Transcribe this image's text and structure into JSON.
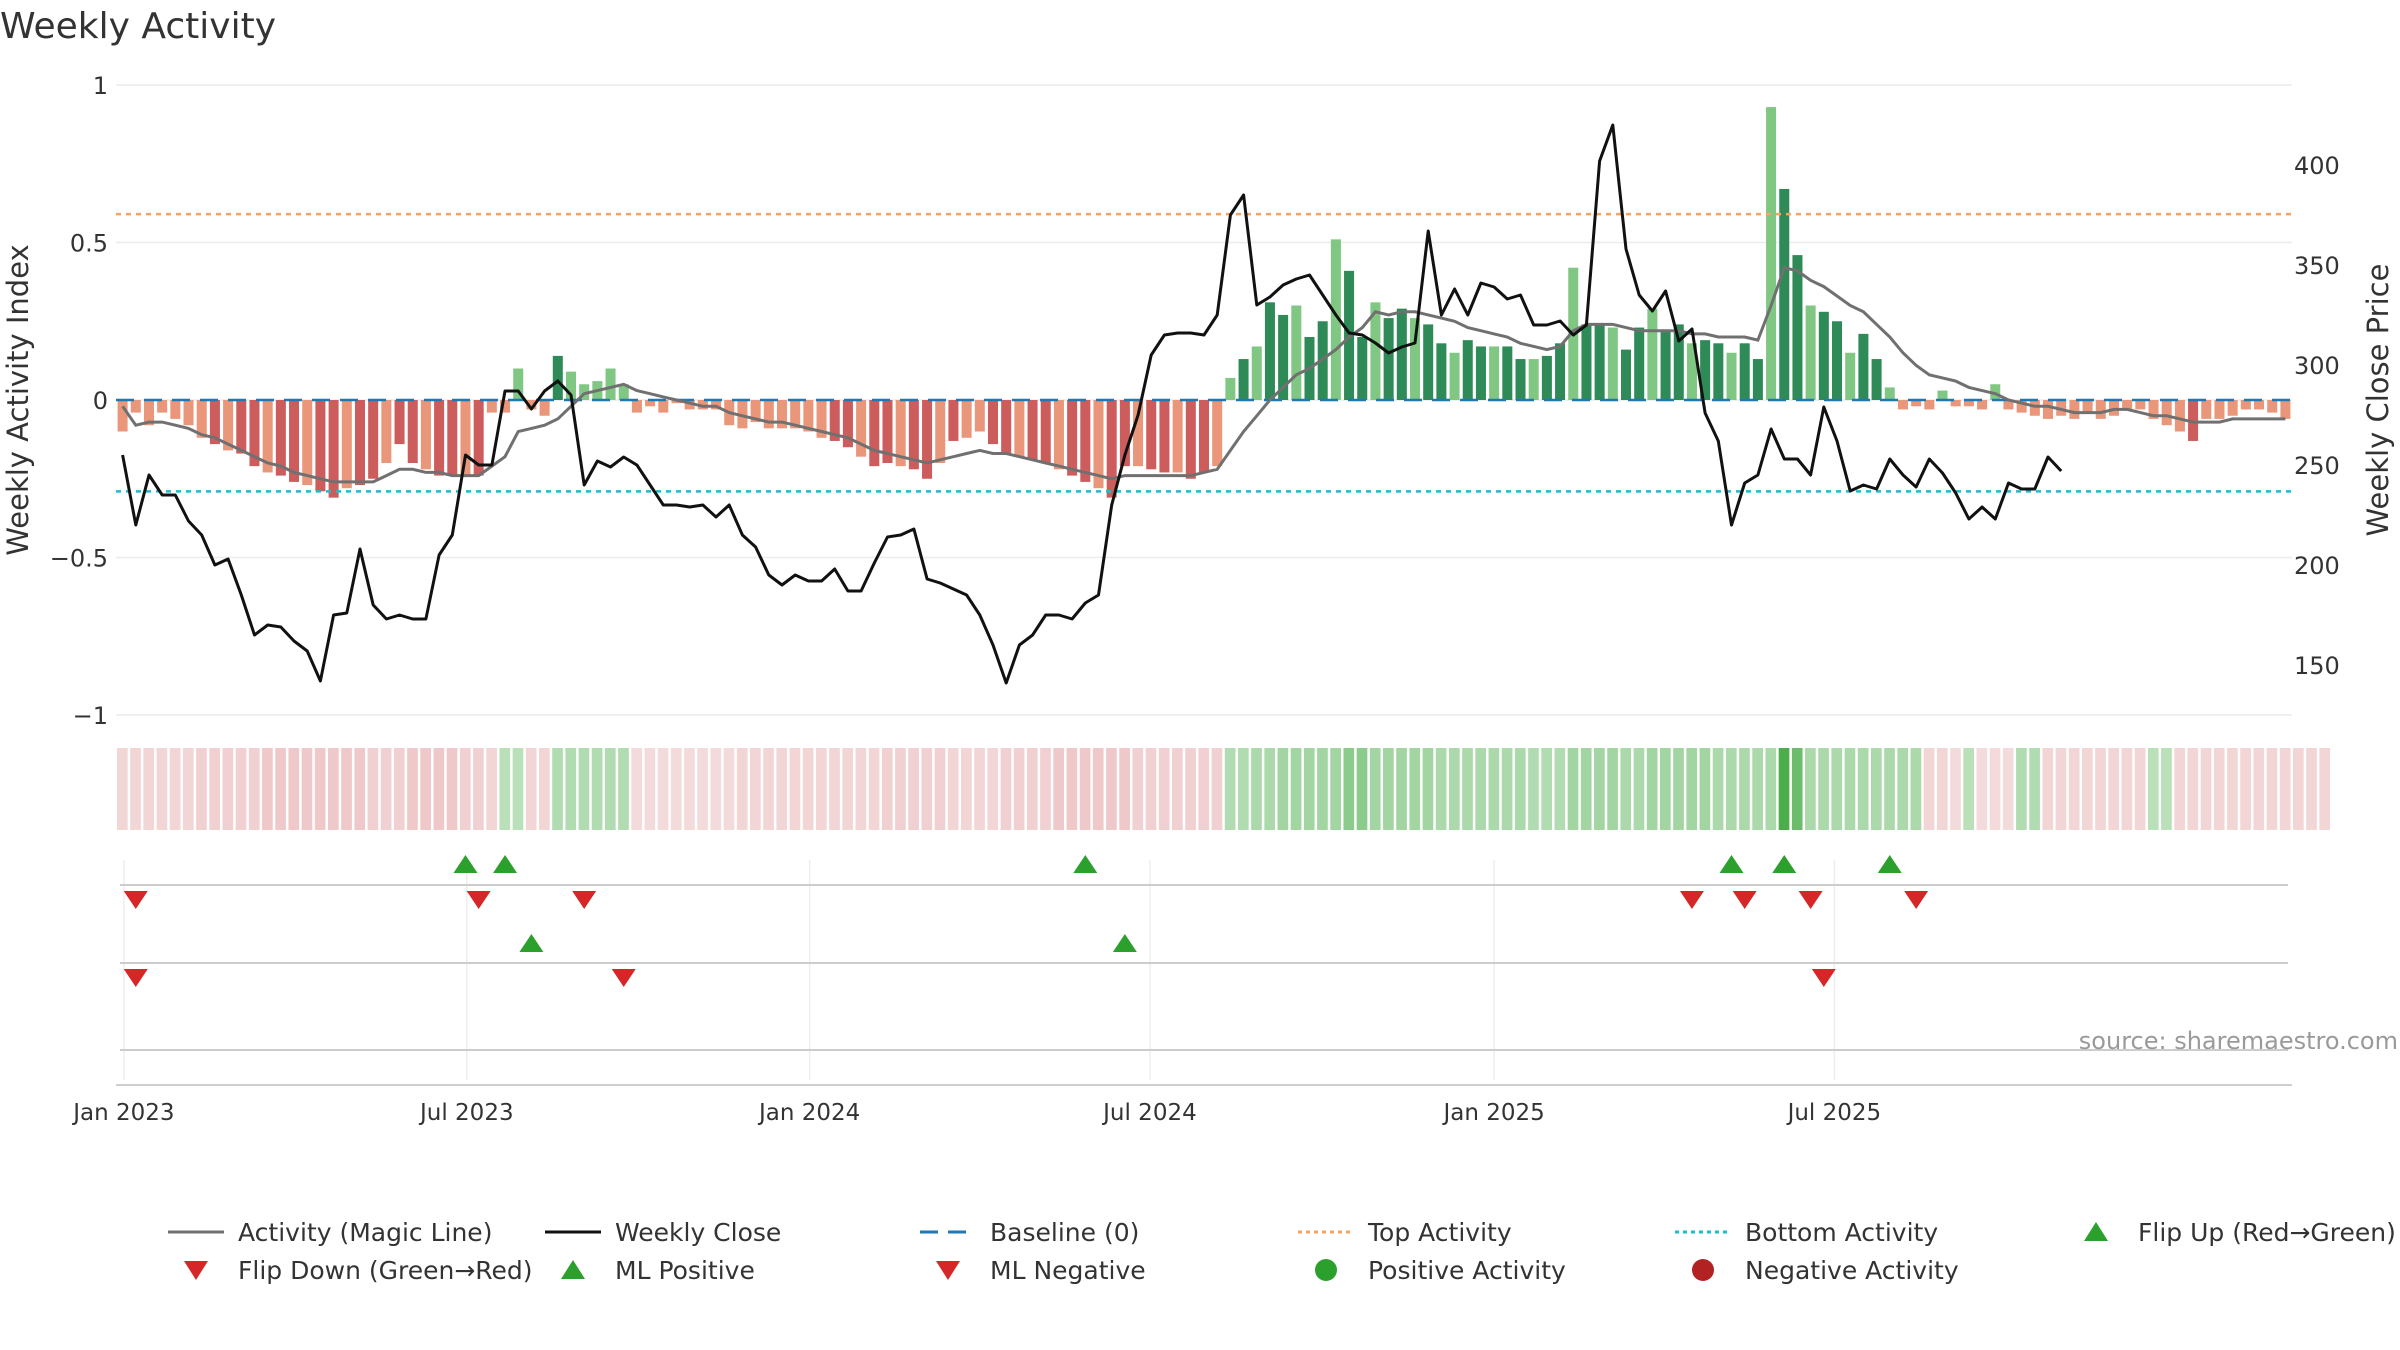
{
  "chart_data": {
    "type": "bar",
    "title": "Weekly Activity",
    "ylabel": "Weekly Activity Index",
    "y2label": "Weekly Close Price",
    "ylim": [
      -1,
      1
    ],
    "y2lim": [
      125,
      440
    ],
    "yticks": [
      "1",
      "0.5",
      "0",
      "−0.5",
      "−1"
    ],
    "ytick_values": [
      1,
      0.5,
      0,
      -0.5,
      -1
    ],
    "y2ticks": [
      150,
      200,
      250,
      300,
      350,
      400
    ],
    "xticks": [
      "Jan 2023",
      "Jul 2023",
      "Jan 2024",
      "Jul 2024",
      "Jan 2025",
      "Jul 2025"
    ],
    "xtick_weeks": [
      0.6,
      26.6,
      52.6,
      78.4,
      104.5,
      130.3
    ],
    "top_activity": 0.59,
    "bottom_activity": -0.29,
    "baseline": 0,
    "grid": true,
    "legend_position": "bottom",
    "source": "source: sharemaestro.com",
    "colors": {
      "pos_dark": "#2e8b57",
      "pos_light": "#81c784",
      "neg_dark": "#cd5c5c",
      "neg_light": "#e9967a",
      "magic": "#707070",
      "close": "#111111",
      "baseline": "#1f77b4",
      "top": "#f4a460",
      "bottom": "#17becf",
      "flip_up": "#2ca02c",
      "flip_down": "#d62728"
    },
    "activity": [
      -0.1,
      -0.04,
      -0.08,
      -0.04,
      -0.06,
      -0.08,
      -0.12,
      -0.14,
      -0.16,
      -0.17,
      -0.21,
      -0.23,
      -0.24,
      -0.26,
      -0.27,
      -0.29,
      -0.31,
      -0.28,
      -0.27,
      -0.25,
      -0.2,
      -0.14,
      -0.2,
      -0.22,
      -0.24,
      -0.24,
      -0.24,
      -0.24,
      -0.04,
      -0.04,
      0.1,
      -0.03,
      -0.05,
      0.14,
      0.09,
      0.05,
      0.06,
      0.1,
      0.05,
      -0.04,
      -0.02,
      -0.04,
      -0.01,
      -0.03,
      -0.03,
      -0.03,
      -0.08,
      -0.09,
      -0.07,
      -0.09,
      -0.09,
      -0.09,
      -0.1,
      -0.12,
      -0.13,
      -0.15,
      -0.18,
      -0.21,
      -0.2,
      -0.21,
      -0.22,
      -0.25,
      -0.2,
      -0.13,
      -0.12,
      -0.1,
      -0.14,
      -0.17,
      -0.18,
      -0.19,
      -0.2,
      -0.22,
      -0.24,
      -0.26,
      -0.28,
      -0.31,
      -0.21,
      -0.21,
      -0.22,
      -0.23,
      -0.23,
      -0.25,
      -0.23,
      -0.21,
      0.07,
      0.13,
      0.17,
      0.31,
      0.27,
      0.3,
      0.2,
      0.25,
      0.51,
      0.41,
      0.2,
      0.31,
      0.26,
      0.29,
      0.26,
      0.24,
      0.18,
      0.15,
      0.19,
      0.17,
      0.17,
      0.17,
      0.13,
      0.13,
      0.14,
      0.18,
      0.42,
      0.24,
      0.24,
      0.23,
      0.16,
      0.23,
      0.29,
      0.22,
      0.24,
      0.18,
      0.19,
      0.18,
      0.15,
      0.18,
      0.13,
      0.93,
      0.67,
      0.46,
      0.3,
      0.28,
      0.25,
      0.15,
      0.21,
      0.13,
      0.04,
      -0.03,
      -0.02,
      -0.03,
      0.03,
      -0.02,
      -0.02,
      -0.03,
      0.05,
      -0.03,
      -0.04,
      -0.05,
      -0.06,
      -0.05,
      -0.06,
      -0.04,
      -0.06,
      -0.05,
      -0.03,
      -0.03,
      -0.06,
      -0.08,
      -0.1,
      -0.13,
      -0.06,
      -0.06,
      -0.05,
      -0.03,
      -0.03,
      -0.04,
      -0.06
    ],
    "magic_line": [
      -0.02,
      -0.08,
      -0.07,
      -0.07,
      -0.08,
      -0.09,
      -0.11,
      -0.12,
      -0.14,
      -0.16,
      -0.18,
      -0.2,
      -0.21,
      -0.23,
      -0.24,
      -0.25,
      -0.26,
      -0.26,
      -0.26,
      -0.26,
      -0.24,
      -0.22,
      -0.22,
      -0.23,
      -0.23,
      -0.24,
      -0.24,
      -0.24,
      -0.21,
      -0.18,
      -0.1,
      -0.09,
      -0.08,
      -0.06,
      -0.02,
      0.02,
      0.03,
      0.04,
      0.05,
      0.03,
      0.02,
      0.01,
      0.0,
      -0.01,
      -0.02,
      -0.02,
      -0.04,
      -0.05,
      -0.06,
      -0.07,
      -0.07,
      -0.08,
      -0.09,
      -0.1,
      -0.11,
      -0.12,
      -0.14,
      -0.16,
      -0.17,
      -0.18,
      -0.19,
      -0.2,
      -0.19,
      -0.18,
      -0.17,
      -0.16,
      -0.17,
      -0.17,
      -0.18,
      -0.19,
      -0.2,
      -0.21,
      -0.22,
      -0.23,
      -0.24,
      -0.25,
      -0.24,
      -0.24,
      -0.24,
      -0.24,
      -0.24,
      -0.24,
      -0.23,
      -0.22,
      -0.16,
      -0.1,
      -0.05,
      0.0,
      0.04,
      0.08,
      0.1,
      0.13,
      0.16,
      0.2,
      0.23,
      0.28,
      0.27,
      0.28,
      0.28,
      0.27,
      0.26,
      0.25,
      0.23,
      0.22,
      0.21,
      0.2,
      0.18,
      0.17,
      0.16,
      0.17,
      0.22,
      0.24,
      0.24,
      0.24,
      0.23,
      0.22,
      0.22,
      0.22,
      0.22,
      0.21,
      0.21,
      0.2,
      0.2,
      0.2,
      0.19,
      0.3,
      0.42,
      0.41,
      0.38,
      0.36,
      0.33,
      0.3,
      0.28,
      0.24,
      0.2,
      0.15,
      0.11,
      0.08,
      0.07,
      0.06,
      0.04,
      0.03,
      0.02,
      0.0,
      -0.01,
      -0.02,
      -0.02,
      -0.03,
      -0.04,
      -0.04,
      -0.04,
      -0.03,
      -0.03,
      -0.04,
      -0.05,
      -0.05,
      -0.06,
      -0.07,
      -0.07,
      -0.07,
      -0.06,
      -0.06,
      -0.06,
      -0.06,
      -0.06
    ],
    "weekly_close": [
      255,
      220,
      245,
      235,
      235,
      222,
      215,
      200,
      203,
      185,
      165,
      170,
      169,
      162,
      157,
      142,
      175,
      176,
      208,
      180,
      173,
      175,
      173,
      173,
      205,
      215,
      255,
      250,
      250,
      287,
      287,
      278,
      287,
      292,
      285,
      240,
      252,
      249,
      254,
      250,
      240,
      230,
      230,
      229,
      230,
      224,
      230,
      215,
      209,
      195,
      190,
      195,
      192,
      192,
      198,
      187,
      187,
      201,
      214,
      215,
      218,
      193,
      191,
      188,
      185,
      175,
      160,
      141,
      160,
      165,
      175,
      175,
      173,
      181,
      185,
      230,
      255,
      275,
      305,
      315,
      316,
      316,
      315,
      325,
      375,
      385,
      330,
      334,
      340,
      343,
      345,
      335,
      325,
      316,
      315,
      311,
      306,
      309,
      311,
      367,
      325,
      338,
      325,
      341,
      339,
      333,
      335,
      320,
      320,
      322,
      315,
      320,
      402,
      420,
      358,
      335,
      327,
      337,
      312,
      318,
      276,
      262,
      220,
      241,
      245,
      268,
      253,
      253,
      245,
      279,
      262,
      237,
      240,
      238,
      253,
      245,
      239,
      253,
      246,
      236,
      223,
      229,
      223,
      241,
      238,
      238,
      254,
      247
    ],
    "strip_levels": [
      -0.2,
      -0.2,
      -0.2,
      -0.2,
      -0.2,
      -0.2,
      -0.25,
      -0.25,
      -0.25,
      -0.25,
      -0.25,
      -0.3,
      -0.3,
      -0.3,
      -0.3,
      -0.3,
      -0.3,
      -0.3,
      -0.3,
      -0.25,
      -0.25,
      -0.25,
      -0.3,
      -0.3,
      -0.3,
      -0.3,
      -0.25,
      -0.25,
      -0.2,
      0.2,
      0.2,
      -0.2,
      -0.2,
      0.25,
      0.25,
      0.25,
      0.25,
      0.25,
      0.25,
      -0.15,
      -0.15,
      -0.15,
      -0.15,
      -0.15,
      -0.15,
      -0.15,
      -0.15,
      -0.2,
      -0.2,
      -0.2,
      -0.2,
      -0.2,
      -0.2,
      -0.2,
      -0.2,
      -0.2,
      -0.2,
      -0.2,
      -0.25,
      -0.25,
      -0.25,
      -0.25,
      -0.25,
      -0.2,
      -0.2,
      -0.2,
      -0.2,
      -0.25,
      -0.25,
      -0.25,
      -0.25,
      -0.3,
      -0.3,
      -0.3,
      -0.3,
      -0.3,
      -0.3,
      -0.25,
      -0.25,
      -0.25,
      -0.25,
      -0.25,
      -0.25,
      -0.25,
      0.25,
      0.25,
      0.3,
      0.3,
      0.35,
      0.35,
      0.35,
      0.35,
      0.35,
      0.5,
      0.5,
      0.35,
      0.35,
      0.35,
      0.35,
      0.35,
      0.3,
      0.3,
      0.3,
      0.3,
      0.3,
      0.3,
      0.3,
      0.25,
      0.25,
      0.25,
      0.35,
      0.35,
      0.35,
      0.35,
      0.3,
      0.3,
      0.35,
      0.35,
      0.35,
      0.35,
      0.35,
      0.3,
      0.3,
      0.3,
      0.3,
      0.3,
      0.9,
      0.7,
      0.3,
      0.3,
      0.3,
      0.3,
      0.3,
      0.3,
      0.3,
      0.3,
      0.3,
      -0.2,
      -0.2,
      -0.15,
      0.2,
      -0.15,
      -0.15,
      -0.15,
      0.25,
      0.25,
      -0.2,
      -0.2,
      -0.2,
      -0.2,
      -0.2,
      -0.2,
      -0.2,
      -0.2,
      0.2,
      0.2,
      -0.2,
      -0.2,
      -0.2,
      -0.2,
      -0.2,
      -0.2,
      -0.2,
      -0.2,
      -0.2,
      -0.2,
      -0.2,
      -0.2
    ],
    "flip_up_weeks": [
      26,
      29,
      73,
      122,
      126,
      134
    ],
    "flip_down_weeks": [
      1,
      27,
      35,
      119,
      123,
      128,
      136
    ],
    "ml_positive_weeks": [
      31,
      76
    ],
    "ml_negative_weeks": [
      1,
      38,
      129
    ],
    "legend": [
      {
        "label": "Activity (Magic Line)",
        "marker": "line-gray"
      },
      {
        "label": "Weekly Close",
        "marker": "line-black"
      },
      {
        "label": "Baseline (0)",
        "marker": "dash-blue"
      },
      {
        "label": "Top Activity",
        "marker": "dot-orange"
      },
      {
        "label": "Bottom Activity",
        "marker": "dot-cyan"
      },
      {
        "label": "Flip Up (Red→Green)",
        "marker": "triangle-up-green"
      },
      {
        "label": "Flip Down (Green→Red)",
        "marker": "triangle-down-red"
      },
      {
        "label": "ML Positive",
        "marker": "triangle-up-green"
      },
      {
        "label": "ML Negative",
        "marker": "triangle-down-red"
      },
      {
        "label": "Positive Activity",
        "marker": "circle-green"
      },
      {
        "label": "Negative Activity",
        "marker": "circle-red"
      }
    ]
  }
}
